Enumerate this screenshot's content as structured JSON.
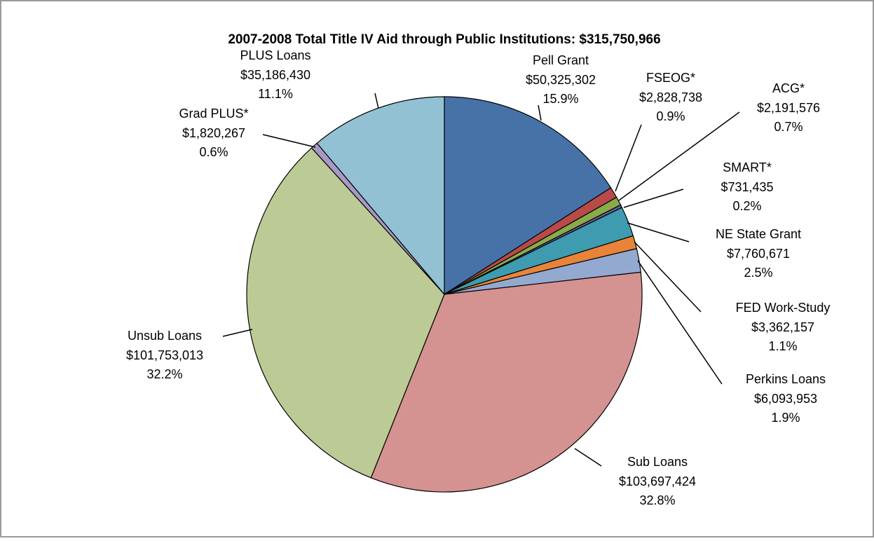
{
  "chart_data": {
    "type": "pie",
    "title": "2007-2008 Total Title IV Aid through Public Institutions:  $315,750,966",
    "categories": [
      "Pell Grant",
      "FSEOG*",
      "ACG*",
      "SMART*",
      "NE State Grant",
      "FED Work-Study",
      "Perkins Loans",
      "Sub Loans",
      "Unsub Loans",
      "Grad PLUS*",
      "PLUS Loans"
    ],
    "values": [
      50325302,
      2828738,
      2191576,
      731435,
      7760671,
      3362157,
      6093953,
      103697424,
      101753013,
      1820267,
      35186430
    ],
    "value_labels": [
      "$50,325,302",
      "$2,828,738",
      "$2,191,576",
      "$731,435",
      "$7,760,671",
      "$3,362,157",
      "$6,093,953",
      "$103,697,424",
      "$101,753,013",
      "$1,820,267",
      "$35,186,430"
    ],
    "percent_labels": [
      "15.9%",
      "0.9%",
      "0.7%",
      "0.2%",
      "2.5%",
      "1.1%",
      "1.9%",
      "32.8%",
      "32.2%",
      "0.6%",
      "11.1%"
    ],
    "colors": [
      "#4672a8",
      "#b94a48",
      "#8aab4a",
      "#6e5a9b",
      "#3e9bb0",
      "#e8843a",
      "#94a9d0",
      "#d49290",
      "#bccb96",
      "#a899c4",
      "#93c1d4"
    ]
  }
}
